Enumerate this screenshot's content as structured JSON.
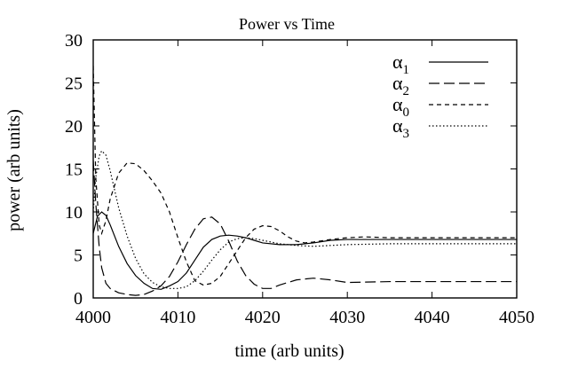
{
  "chart_data": {
    "type": "line",
    "title": "Power vs Time",
    "xlabel": "time (arb units)",
    "ylabel": "power (arb units)",
    "xlim": [
      4000,
      4050
    ],
    "ylim": [
      0,
      30
    ],
    "xticks": [
      4000,
      4010,
      4020,
      4030,
      4040,
      4050
    ],
    "yticks": [
      0,
      5,
      10,
      15,
      20,
      25,
      30
    ],
    "grid": false,
    "legend_position": "top-right",
    "series": [
      {
        "name": "α1",
        "legend_base": "α",
        "legend_sub": "1",
        "style": "solid",
        "x": [
          4000,
          4000.5,
          4001,
          4001.5,
          4002,
          4003,
          4004,
          4005,
          4006,
          4007,
          4008,
          4009,
          4010,
          4011,
          4012,
          4013,
          4014,
          4015,
          4016,
          4017,
          4018,
          4019,
          4020,
          4022,
          4024,
          4026,
          4028,
          4030,
          4035,
          4040,
          4045,
          4050
        ],
        "y": [
          7.5,
          9.5,
          10.0,
          9.6,
          8.5,
          6.0,
          4.0,
          2.6,
          1.7,
          1.1,
          1.0,
          1.4,
          1.9,
          2.9,
          4.4,
          5.9,
          6.8,
          7.2,
          7.3,
          7.2,
          7.0,
          6.7,
          6.4,
          6.2,
          6.2,
          6.4,
          6.7,
          6.8,
          6.8,
          6.8,
          6.8,
          6.8
        ]
      },
      {
        "name": "α2",
        "legend_base": "α",
        "legend_sub": "2",
        "style": "long-dash",
        "x": [
          4000,
          4000.3,
          4000.7,
          4001,
          4001.5,
          4002,
          4003,
          4004,
          4005,
          4006,
          4007,
          4008,
          4009,
          4010,
          4011,
          4012,
          4013,
          4014,
          4015,
          4016,
          4017,
          4018,
          4019,
          4020,
          4021,
          4022,
          4024,
          4026,
          4028,
          4030,
          4035,
          4040,
          4050
        ],
        "y": [
          16.0,
          11.0,
          6.0,
          3.5,
          1.7,
          1.1,
          0.6,
          0.4,
          0.3,
          0.4,
          0.8,
          1.4,
          2.5,
          4.2,
          6.2,
          8.0,
          9.2,
          9.4,
          8.6,
          6.6,
          4.3,
          2.6,
          1.6,
          1.1,
          1.1,
          1.5,
          2.1,
          2.3,
          2.1,
          1.8,
          1.9,
          1.9,
          1.9
        ]
      },
      {
        "name": "α0",
        "legend_base": "α",
        "legend_sub": "0",
        "style": "short-dash",
        "x": [
          4000,
          4000.3,
          4000.7,
          4001,
          4001.5,
          4002,
          4003,
          4004,
          4005,
          4006,
          4007,
          4008,
          4009,
          4010,
          4011,
          4012,
          4013,
          4014,
          4015,
          4016,
          4017,
          4018,
          4019,
          4020,
          4021,
          4022,
          4023,
          4024,
          4025,
          4026,
          4028,
          4030,
          4032,
          4035,
          4040,
          4050
        ],
        "y": [
          27.0,
          14.0,
          8.5,
          7.5,
          9.0,
          11.5,
          14.5,
          15.7,
          15.6,
          14.8,
          13.6,
          12.2,
          10.0,
          7.0,
          4.2,
          2.0,
          1.5,
          1.7,
          2.5,
          4.0,
          5.5,
          7.0,
          8.0,
          8.4,
          8.3,
          7.8,
          7.1,
          6.6,
          6.4,
          6.5,
          6.8,
          7.0,
          7.1,
          7.0,
          7.0,
          7.0
        ]
      },
      {
        "name": "α3",
        "legend_base": "α",
        "legend_sub": "3",
        "style": "dotted",
        "x": [
          4000,
          4000.3,
          4000.7,
          4001,
          4001.5,
          4002,
          4003,
          4004,
          4005,
          4006,
          4007,
          4008,
          4009,
          4010,
          4011,
          4012,
          4013,
          4014,
          4015,
          4016,
          4017,
          4018,
          4019,
          4020,
          4022,
          4024,
          4026,
          4028,
          4030,
          4035,
          4040,
          4045,
          4050
        ],
        "y": [
          10.0,
          14.0,
          16.5,
          17.1,
          16.6,
          14.8,
          10.5,
          7.2,
          4.6,
          2.8,
          1.8,
          1.3,
          1.1,
          1.1,
          1.3,
          2.0,
          3.1,
          4.4,
          5.6,
          6.5,
          6.9,
          7.0,
          6.9,
          6.7,
          6.3,
          6.1,
          6.0,
          6.1,
          6.2,
          6.3,
          6.3,
          6.3,
          6.3
        ]
      }
    ]
  }
}
